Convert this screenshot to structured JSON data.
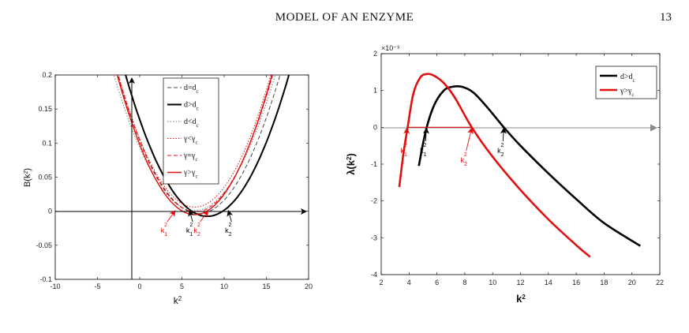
{
  "page": {
    "running_head": "MODEL OF AN ENZYME",
    "page_number": "13"
  },
  "chart_data": [
    {
      "type": "line",
      "xlabel": "k²",
      "ylabel": "B(k²)",
      "xlim": [
        -10,
        20
      ],
      "ylim": [
        -0.1,
        0.2
      ],
      "xticks": [
        "-10",
        "-5",
        "0",
        "5",
        "10",
        "15",
        "20"
      ],
      "yticks": [
        "-0.1",
        "-0.05",
        "0",
        "0.05",
        "0.1",
        "0.15",
        "0.2"
      ],
      "grid": false,
      "legend_position": "top-right",
      "series": [
        {
          "name": "d=d_c",
          "color": "#444444",
          "style": "dashed",
          "a": 0.0022,
          "h": 7,
          "m": -0.0035
        },
        {
          "name": "d>d_c",
          "color": "#000000",
          "style": "solid-thick",
          "a": 0.00222,
          "h": 8,
          "m": -0.0075
        },
        {
          "name": "d<d_c",
          "color": "#777777",
          "style": "dotted",
          "a": 0.00218,
          "h": 6.5,
          "m": 0.001
        },
        {
          "name": "γ<γ_c",
          "color": "#e01010",
          "style": "dotted",
          "a": 0.00238,
          "h": 6.5,
          "m": 0.006
        },
        {
          "name": "γ=γ_c",
          "color": "#e01010",
          "style": "dashed",
          "a": 0.0024,
          "h": 6.6,
          "m": -0.001
        },
        {
          "name": "γ>γ_c",
          "color": "#e01010",
          "style": "solid",
          "a": 0.00244,
          "h": 6.5,
          "m": -0.005
        }
      ],
      "annotations": [
        {
          "label": "k",
          "sub": "1",
          "sup": "2",
          "color": "#e01010",
          "x": 4.2
        },
        {
          "label": "k",
          "sub": "1",
          "sup": "2",
          "color": "#000000",
          "x": 5.9
        },
        {
          "label": "k",
          "sub": "2",
          "sup": "2",
          "color": "#e01010",
          "x": 8.1
        },
        {
          "label": "k",
          "sub": "2",
          "sup": "2",
          "color": "#000000",
          "x": 10.5
        }
      ]
    },
    {
      "type": "line",
      "xlabel": "k²",
      "ylabel": "λ(k²)",
      "y_multiplier": "×10⁻³",
      "xlim": [
        2,
        22
      ],
      "ylim": [
        -4,
        2
      ],
      "xticks": [
        "2",
        "4",
        "6",
        "8",
        "10",
        "12",
        "14",
        "16",
        "18",
        "20",
        "22"
      ],
      "yticks": [
        "-4",
        "-3",
        "-2",
        "-1",
        "0",
        "1",
        "2"
      ],
      "grid": false,
      "legend_position": "top-right",
      "series": [
        {
          "name": "d>d_c",
          "color": "#000000",
          "x": [
            4.7,
            5.2,
            5.8,
            6.5,
            7.1,
            7.8,
            8.6,
            9.6,
            10.8,
            12,
            14,
            16,
            18,
            20.6
          ],
          "y": [
            -1.05,
            -0.1,
            0.6,
            1.0,
            1.1,
            1.1,
            0.95,
            0.55,
            0.0,
            -0.5,
            -1.25,
            -1.95,
            -2.6,
            -3.22
          ]
        },
        {
          "name": "γ>γ_c",
          "color": "#e01010",
          "x": [
            3.3,
            3.6,
            3.9,
            4.3,
            4.8,
            5.3,
            5.8,
            6.5,
            7.3,
            8.5,
            10,
            12,
            14,
            16,
            17
          ],
          "y": [
            -1.62,
            -0.7,
            0.0,
            0.9,
            1.35,
            1.45,
            1.4,
            1.2,
            0.8,
            0.0,
            -0.8,
            -1.7,
            -2.5,
            -3.2,
            -3.52
          ]
        }
      ],
      "annotations": [
        {
          "label": "k",
          "sub": "1",
          "sup": "2",
          "color": "#e01010",
          "x": 3.85
        },
        {
          "label": "k",
          "sub": "1",
          "sup": "2",
          "color": "#000000",
          "x": 5.25
        },
        {
          "label": "k",
          "sub": "2",
          "sup": "2",
          "color": "#e01010",
          "x": 8.5
        },
        {
          "label": "k",
          "sub": "2",
          "sup": "2",
          "color": "#000000",
          "x": 10.8
        }
      ]
    }
  ]
}
